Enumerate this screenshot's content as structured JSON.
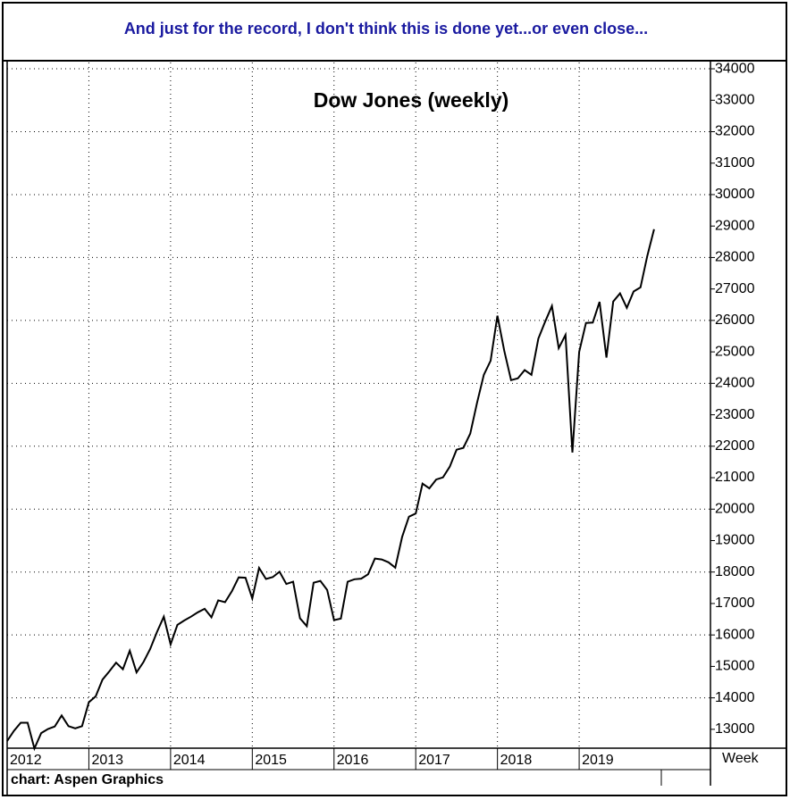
{
  "banner": "And just for the record, I don't think this is done yet...or even close...",
  "footer": "chart: Aspen Graphics",
  "chart_data": {
    "type": "line",
    "title": "Dow Jones (weekly)",
    "x_unit": "Week",
    "categories": [
      "2012",
      null,
      null,
      null,
      null,
      null,
      null,
      null,
      null,
      null,
      null,
      null,
      "2013",
      null,
      null,
      null,
      null,
      null,
      null,
      null,
      null,
      null,
      null,
      null,
      "2014",
      null,
      null,
      null,
      null,
      null,
      null,
      null,
      null,
      null,
      null,
      null,
      "2015",
      null,
      null,
      null,
      null,
      null,
      null,
      null,
      null,
      null,
      null,
      null,
      "2016",
      null,
      null,
      null,
      null,
      null,
      null,
      null,
      null,
      null,
      null,
      null,
      "2017",
      null,
      null,
      null,
      null,
      null,
      null,
      null,
      null,
      null,
      null,
      null,
      "2018",
      null,
      null,
      null,
      null,
      null,
      null,
      null,
      null,
      null,
      null,
      null,
      "2019",
      null,
      null,
      null,
      null,
      null,
      null,
      null,
      null,
      null,
      null,
      null
    ],
    "values": [
      12630,
      12950,
      13210,
      13210,
      12390,
      12880,
      13010,
      13090,
      13440,
      13100,
      13030,
      13100,
      13860,
      14050,
      14580,
      14840,
      15120,
      14910,
      15500,
      14810,
      15130,
      15550,
      16090,
      16580,
      15700,
      16320,
      16460,
      16580,
      16720,
      16830,
      16560,
      17100,
      17040,
      17390,
      17830,
      17820,
      17160,
      18130,
      17780,
      17840,
      18010,
      17620,
      17690,
      16530,
      16280,
      17660,
      17720,
      17430,
      16470,
      16520,
      17690,
      17770,
      17790,
      17930,
      18430,
      18400,
      18310,
      18140,
      19120,
      19760,
      19860,
      20810,
      20660,
      20940,
      21010,
      21350,
      21890,
      21950,
      22400,
      23380,
      24270,
      24720,
      26150,
      25030,
      24100,
      24160,
      24420,
      24270,
      25420,
      25960,
      26460,
      25120,
      25540,
      21800,
      24999,
      25920,
      25930,
      26590,
      24820,
      26600,
      26860,
      26400,
      26920,
      27050,
      28050,
      28900
    ],
    "color": "#000000",
    "ylim": [
      12400,
      34200
    ],
    "yticks": [
      13000,
      14000,
      15000,
      16000,
      17000,
      18000,
      19000,
      20000,
      21000,
      22000,
      23000,
      24000,
      25000,
      26000,
      27000,
      28000,
      29000,
      30000,
      31000,
      32000,
      33000,
      34000
    ],
    "grid": true
  }
}
